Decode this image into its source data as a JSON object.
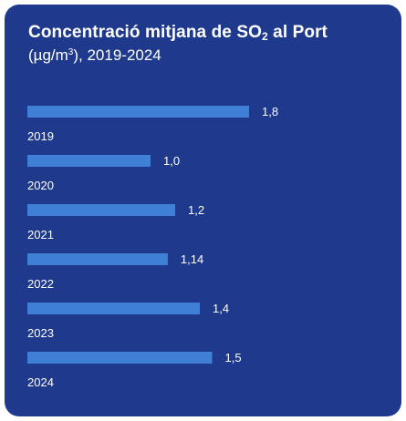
{
  "header": {
    "title_prefix": "Concentració mitjana de SO",
    "title_sub": "2",
    "title_suffix": " al Port",
    "subtitle_unit_prefix": "(µg/m",
    "subtitle_unit_sup": "3",
    "subtitle_unit_suffix": "), 2019-2024"
  },
  "colors": {
    "background": "#1f3a8c",
    "bar": "#3f7fd6",
    "text": "#ffffff"
  },
  "chart_data": {
    "type": "bar",
    "orientation": "horizontal",
    "title": "Concentració mitjana de SO2 al Port",
    "subtitle": "(µg/m3), 2019-2024",
    "categories": [
      "2019",
      "2020",
      "2021",
      "2022",
      "2023",
      "2024"
    ],
    "values": [
      1.8,
      1.0,
      1.2,
      1.14,
      1.4,
      1.5
    ],
    "value_labels": [
      "1,8",
      "1,0",
      "1,2",
      "1,14",
      "1,4",
      "1,5"
    ],
    "xlim": [
      0,
      1.8
    ],
    "grid": false,
    "legend": "none"
  }
}
